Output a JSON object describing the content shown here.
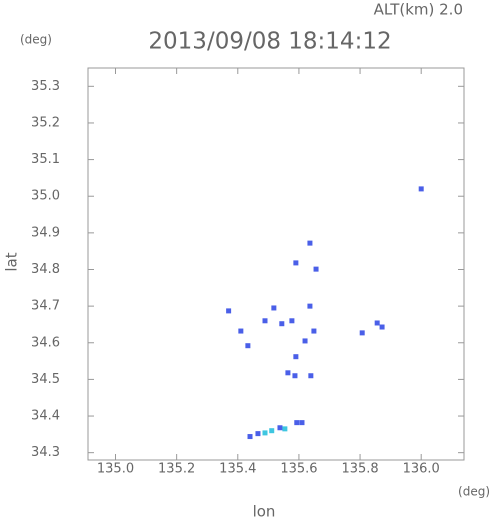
{
  "chart_data": {
    "type": "scatter",
    "title": "2013/09/08 18:14:12",
    "annotation": "ALT(km) 2.0",
    "y_unit": "(deg)",
    "x_unit": "(deg)",
    "xlabel": "lon",
    "ylabel": "lat",
    "xlim": [
      134.91,
      136.14
    ],
    "ylim": [
      34.28,
      35.35
    ],
    "xticks": [
      {
        "value": 135,
        "label": "135.0"
      },
      135.2,
      135.4,
      135.6,
      135.8,
      {
        "value": 136,
        "label": "136.0"
      }
    ],
    "yticks": [
      34.3,
      34.4,
      34.5,
      34.6,
      34.7,
      34.8,
      34.9,
      {
        "value": 35,
        "label": "35.0"
      },
      35.1,
      35.2,
      35.3
    ],
    "series": [
      {
        "color": "#4a5fe8",
        "x": [
          136.0,
          135.636,
          135.59,
          135.656,
          135.37,
          135.41,
          135.518,
          135.489,
          135.544,
          135.577,
          135.636,
          135.649,
          135.62,
          135.59,
          135.587,
          135.564,
          135.639,
          135.433,
          135.807,
          135.856,
          135.872,
          135.593,
          135.61,
          135.538,
          135.44,
          135.466
        ],
        "values": [
          35.02,
          34.872,
          34.818,
          34.801,
          34.687,
          34.632,
          34.695,
          34.66,
          34.652,
          34.66,
          34.7,
          34.632,
          34.605,
          34.562,
          34.51,
          34.518,
          34.51,
          34.592,
          34.627,
          34.654,
          34.643,
          34.382,
          34.382,
          34.368,
          34.344,
          34.352
        ]
      },
      {
        "color": "#3ec6e0",
        "x": [
          135.489,
          135.511,
          135.554
        ],
        "values": [
          34.354,
          34.36,
          34.365
        ]
      }
    ]
  }
}
